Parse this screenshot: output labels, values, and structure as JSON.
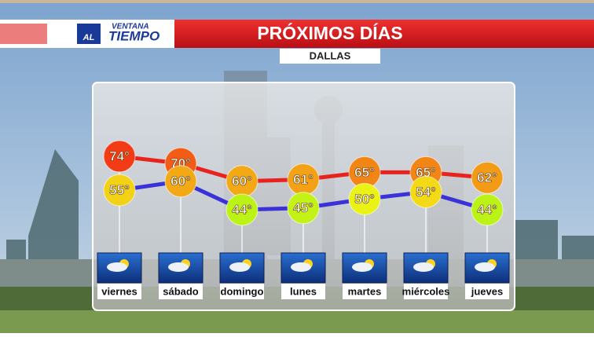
{
  "logo": {
    "top": "VENTANA",
    "left": "AL",
    "right": "TIEMPO"
  },
  "chart_data": {
    "type": "line",
    "title": "PRÓXIMOS DÍAS",
    "subtitle": "DALLAS",
    "categories": [
      "viernes",
      "sábado",
      "domingo",
      "lunes",
      "martes",
      "miércoles",
      "jueves"
    ],
    "series": [
      {
        "color": "#e8221c",
        "values": [
          74,
          70,
          60,
          61,
          65,
          65,
          62
        ],
        "value_labels": [
          "74°",
          "70°",
          "60°",
          "61°",
          "65°",
          "65°",
          "62°"
        ]
      },
      {
        "color": "#3a32d8",
        "values": [
          55,
          60,
          44,
          45,
          50,
          54,
          44
        ],
        "value_labels": [
          "55°",
          "60°",
          "44°",
          "45°",
          "50°",
          "54°",
          "44°"
        ]
      }
    ]
  }
}
